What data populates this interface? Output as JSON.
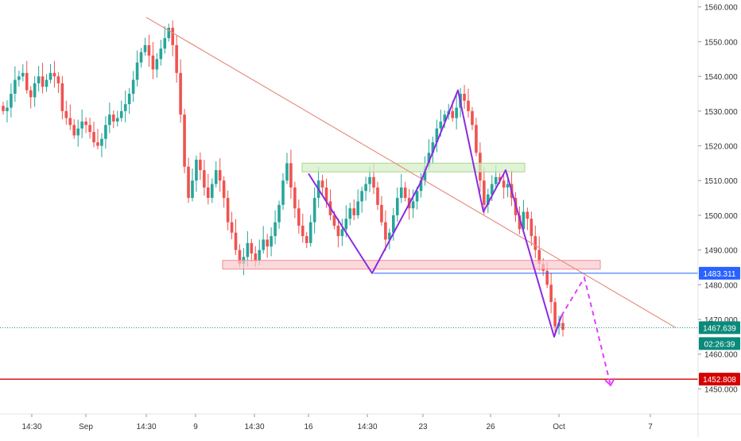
{
  "colors": {
    "up": "#26a69a",
    "down": "#ef5350",
    "trendline": "#e88f84",
    "pattern": "#8a2be2",
    "projection": "#e040fb",
    "support_fill": "#f8c9cd",
    "support_stroke": "#f28b94",
    "resistance_fill": "#d7efc8",
    "resistance_stroke": "#a6d98d",
    "level_blue": "#2962ff",
    "level_red": "#d50000",
    "price_line": "#0b8a7a",
    "axis_text": "#333333",
    "grid_border": "#e0e3eb"
  },
  "chart_data": {
    "type": "candlestick",
    "title": "",
    "y_range": [
      1443,
      1562
    ],
    "y_ticks": [
      "1450.000",
      "1460.000",
      "1470.000",
      "1480.000",
      "1490.000",
      "1500.000",
      "1510.000",
      "1520.000",
      "1530.000",
      "1540.000",
      "1550.000",
      "1560.000"
    ],
    "x_ticks": [
      "14:30",
      "Sep",
      "14:30",
      "9",
      "14:30",
      "16",
      "14:30",
      "23",
      "26",
      "Oct",
      "7"
    ],
    "price_labels": {
      "level_upper": "1483.311",
      "current": "1467.639",
      "countdown": "02:26:39",
      "level_lower": "1452.808"
    },
    "close_series": [
      1530,
      1531,
      1535,
      1539,
      1540,
      1541,
      1536,
      1534,
      1538,
      1540,
      1537,
      1539,
      1541,
      1540,
      1538,
      1530,
      1528,
      1526,
      1523,
      1525,
      1527,
      1526,
      1524,
      1521,
      1520,
      1522,
      1526,
      1529,
      1527,
      1528,
      1530,
      1532,
      1535,
      1539,
      1544,
      1547,
      1549,
      1546,
      1542,
      1545,
      1548,
      1551,
      1554,
      1549,
      1541,
      1529,
      1514,
      1505,
      1510,
      1516,
      1513,
      1508,
      1505,
      1509,
      1513,
      1510,
      1505,
      1498,
      1495,
      1490,
      1486,
      1488,
      1492,
      1489,
      1487,
      1490,
      1493,
      1491,
      1494,
      1498,
      1503,
      1510,
      1515,
      1508,
      1502,
      1497,
      1494,
      1492,
      1498,
      1505,
      1510,
      1508,
      1504,
      1500,
      1497,
      1494,
      1496,
      1499,
      1502,
      1500,
      1504,
      1507,
      1509,
      1511,
      1508,
      1503,
      1498,
      1493,
      1495,
      1500,
      1505,
      1508,
      1505,
      1502,
      1504,
      1507,
      1510,
      1514,
      1518,
      1521,
      1525,
      1527,
      1529,
      1530,
      1528,
      1531,
      1535,
      1533,
      1530,
      1526,
      1518,
      1510,
      1503,
      1506,
      1509,
      1511,
      1510,
      1508,
      1509,
      1505,
      1500,
      1496,
      1501,
      1499,
      1494,
      1490,
      1486,
      1484,
      1480,
      1475,
      1468,
      1469,
      1467
    ],
    "support_zone": [
      1484.5,
      1487
    ],
    "resistance_zone": [
      1512.5,
      1515
    ],
    "trendline": {
      "from": [
        184,
        1557
      ],
      "to": [
        850,
        1467.6
      ]
    },
    "pattern_path": [
      [
        388,
        1512
      ],
      [
        468,
        1483.3
      ],
      [
        528,
        1509
      ],
      [
        576,
        1536
      ],
      [
        608,
        1501
      ],
      [
        636,
        1513
      ],
      [
        697,
        1465
      ],
      [
        706,
        1471
      ]
    ],
    "projection_path": [
      [
        706,
        1471
      ],
      [
        735,
        1482
      ],
      [
        768,
        1451
      ]
    ],
    "levels": [
      1483.311,
      1467.639,
      1452.808
    ]
  }
}
